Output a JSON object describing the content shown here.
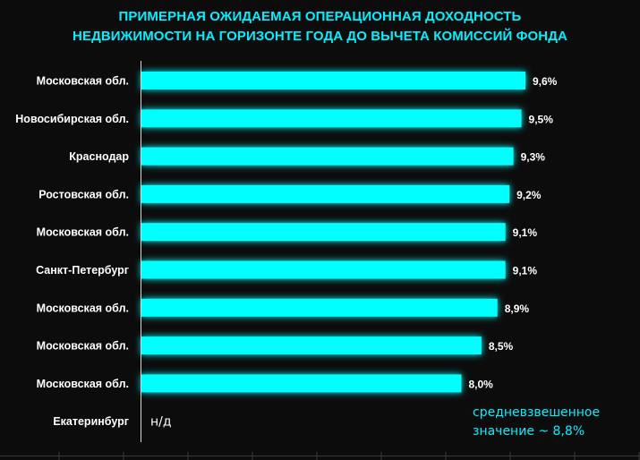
{
  "chart_data": {
    "type": "bar",
    "orientation": "horizontal",
    "title_lines": [
      "ПРИМЕРНАЯ ОЖИДАЕМАЯ ОПЕРАЦИОННАЯ ДОХОДНОСТЬ",
      "НЕДВИЖИМОСТИ НА ГОРИЗОНТЕ ГОДА ДО ВЫЧЕТА КОМИССИЙ ФОНДА"
    ],
    "categories": [
      "Московская обл.",
      "Новосибирская обл.",
      "Краснодар",
      "Ростовская обл.",
      "Московская обл.",
      "Санкт-Петербург",
      "Московская обл.",
      "Московская обл.",
      "Московская обл.",
      "Екатеринбург"
    ],
    "values": [
      9.6,
      9.5,
      9.3,
      9.2,
      9.1,
      9.1,
      8.9,
      8.5,
      8.0,
      null
    ],
    "value_labels": [
      "9,6%",
      "9,5%",
      "9,3%",
      "9,2%",
      "9,1%",
      "9,1%",
      "8,9%",
      "8,5%",
      "8,0%",
      "н/д"
    ],
    "xlim": [
      0,
      9.6
    ],
    "bar_color": "#00ffff",
    "grid": false,
    "annotation_lines": [
      "средневзвешенное",
      "значение ~ 8,8%"
    ]
  },
  "colors": {
    "background": "#0c0c0c",
    "title": "#00f0ff",
    "bar": "#00ffff",
    "annotation": "#00f0ff",
    "label": "#ffffff"
  }
}
